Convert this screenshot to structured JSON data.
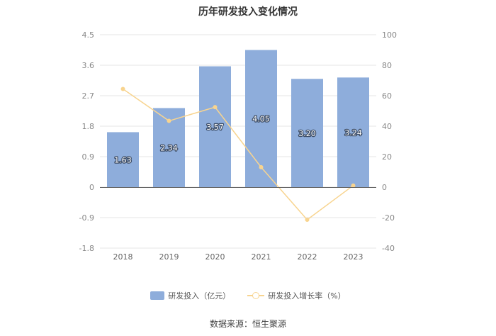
{
  "chart_data": {
    "type": "bar",
    "title": "历年研发投入变化情况",
    "categories": [
      "2018",
      "2019",
      "2020",
      "2021",
      "2022",
      "2023"
    ],
    "series": [
      {
        "name": "研发投入（亿元）",
        "kind": "bar",
        "axis": "left",
        "color": "#8eaddb",
        "values": [
          1.63,
          2.34,
          3.57,
          4.05,
          3.2,
          3.24
        ],
        "labels": [
          "1.63",
          "2.34",
          "3.57",
          "4.05",
          "3.20",
          "3.24"
        ]
      },
      {
        "name": "研发投入增长率（%）",
        "kind": "line",
        "axis": "right",
        "color": "#f8d48f",
        "values": [
          64.5,
          43.6,
          52.6,
          13.3,
          -21.1,
          1.3
        ]
      }
    ],
    "y_left": {
      "lim": [
        -1.8,
        4.5
      ],
      "ticks": [
        "4.5",
        "3.6",
        "2.7",
        "1.8",
        "0.9",
        "0",
        "-0.9",
        "-1.8"
      ]
    },
    "y_right": {
      "lim": [
        -40,
        100
      ],
      "ticks": [
        "100",
        "80",
        "60",
        "40",
        "20",
        "0",
        "-20",
        "-40"
      ]
    },
    "grid": true,
    "legend_position": "bottom",
    "source": "数据来源：恒生聚源"
  }
}
